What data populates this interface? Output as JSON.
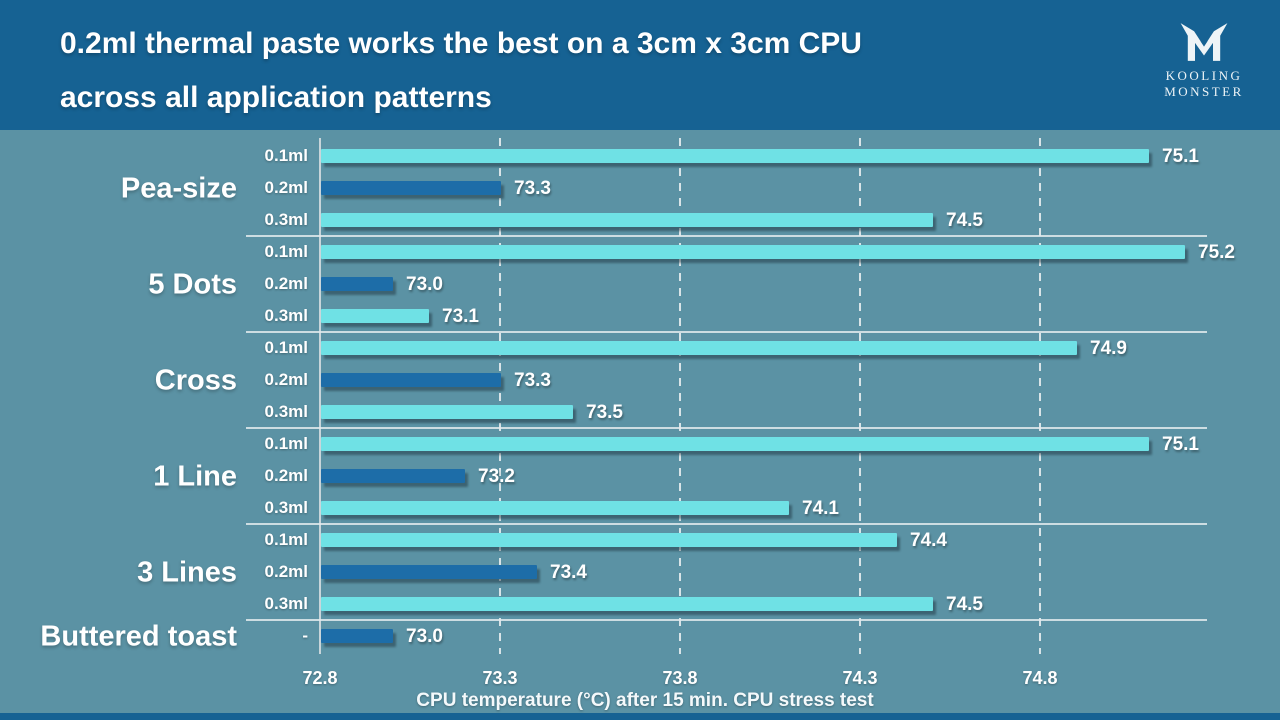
{
  "header": {
    "title_line1": "0.2ml thermal paste works the best on a 3cm x 3cm CPU",
    "title_line2": "across all application patterns",
    "logo_line1": "KOOLING",
    "logo_line2": "MONSTER"
  },
  "chart_data": {
    "type": "bar",
    "orientation": "horizontal",
    "title": "0.2ml thermal paste works the best on a 3cm x 3cm CPU across all application patterns",
    "xlabel": "CPU temperature (°C) after 15 min. CPU stress test",
    "x_ticks": [
      72.8,
      73.3,
      73.8,
      74.3,
      74.8
    ],
    "xlim": [
      72.8,
      75.5
    ],
    "grid": "dashed-vertical",
    "legend": "none",
    "groups": [
      {
        "label": "Pea-size",
        "bars": [
          {
            "amount": "0.1ml",
            "value": 75.1
          },
          {
            "amount": "0.2ml",
            "value": 73.3
          },
          {
            "amount": "0.3ml",
            "value": 74.5
          }
        ]
      },
      {
        "label": "5 Dots",
        "bars": [
          {
            "amount": "0.1ml",
            "value": 75.2
          },
          {
            "amount": "0.2ml",
            "value": 73.0
          },
          {
            "amount": "0.3ml",
            "value": 73.1
          }
        ]
      },
      {
        "label": "Cross",
        "bars": [
          {
            "amount": "0.1ml",
            "value": 74.9
          },
          {
            "amount": "0.2ml",
            "value": 73.3
          },
          {
            "amount": "0.3ml",
            "value": 73.5
          }
        ]
      },
      {
        "label": "1 Line",
        "bars": [
          {
            "amount": "0.1ml",
            "value": 75.1
          },
          {
            "amount": "0.2ml",
            "value": 73.2
          },
          {
            "amount": "0.3ml",
            "value": 74.1
          }
        ]
      },
      {
        "label": "3 Lines",
        "bars": [
          {
            "amount": "0.1ml",
            "value": 74.4
          },
          {
            "amount": "0.2ml",
            "value": 73.4
          },
          {
            "amount": "0.3ml",
            "value": 74.5
          }
        ]
      },
      {
        "label": "Buttered toast",
        "bars": [
          {
            "amount": "-",
            "value": 73.0
          }
        ]
      }
    ],
    "series_colors": {
      "0.1ml": "#6fe1e5",
      "0.2ml": "#1d6da8",
      "0.3ml": "#6fe1e5",
      "-": "#1d6da8"
    },
    "colors": {
      "header_background": "#166293",
      "slide_background": "#5b92a4",
      "axis_line": "#cfd9dd",
      "text": "#ffffff"
    }
  }
}
